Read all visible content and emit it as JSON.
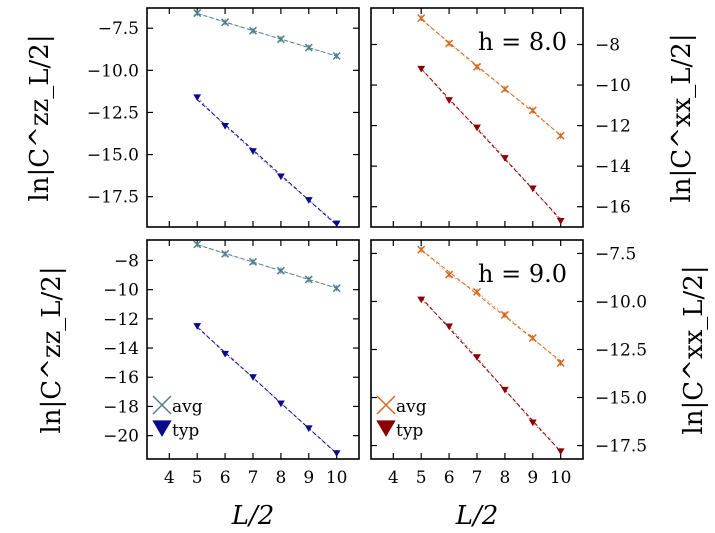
{
  "figure": {
    "xlabel_left": "L/2",
    "xlabel_right": "L/2",
    "ylabel_left_top": "ln|C^zz_L/2|",
    "ylabel_left_bottom": "ln|C^zz_L/2|",
    "ylabel_right_top": "ln|C^xx_L/2|",
    "ylabel_right_bottom": "ln|C^xx_L/2|",
    "annotation_top": "h = 8.0",
    "annotation_bottom": "h = 9.0",
    "legend_left": {
      "avg": "avg",
      "typ": "typ"
    },
    "legend_right": {
      "avg": "avg",
      "typ": "typ"
    }
  },
  "colors": {
    "zz_avg": "#4e7f8a",
    "zz_typ": "#0a0a8c",
    "xx_avg": "#d2691e",
    "xx_typ": "#8b0000",
    "fit_zz": "#6fa8a0",
    "fit_xx": "#d2691e"
  },
  "chart_data": [
    {
      "id": "top-left",
      "type": "line",
      "h": 8.0,
      "ylabel": "ln|C^zz_L/2|",
      "xlabel": "",
      "xlim": [
        3.2,
        10.8
      ],
      "ylim": [
        -19.3,
        -6.3
      ],
      "xticks": [
        4,
        5,
        6,
        7,
        8,
        9,
        10
      ],
      "show_xticklabels": false,
      "yticks": [
        -17.5,
        -15.0,
        -12.5,
        -10.0,
        -7.5
      ],
      "ytick_labels": [
        "−17.5",
        "−15.0",
        "−12.5",
        "−10.0",
        "−7.5"
      ],
      "yaxis_side": "left",
      "series": [
        {
          "name": "avg",
          "marker": "x",
          "color": "#4e7f8a",
          "x": [
            5,
            6,
            7,
            8,
            9,
            10
          ],
          "y": [
            -6.6,
            -7.15,
            -7.65,
            -8.15,
            -8.65,
            -9.15
          ]
        },
        {
          "name": "typ",
          "marker": "triangle-down",
          "color": "#0a0a8c",
          "x": [
            5,
            6,
            7,
            8,
            9,
            10
          ],
          "y": [
            -11.6,
            -13.3,
            -14.8,
            -16.3,
            -17.7,
            -19.1
          ]
        }
      ]
    },
    {
      "id": "top-right",
      "type": "line",
      "h": 8.0,
      "ylabel": "ln|C^xx_L/2|",
      "xlabel": "",
      "xlim": [
        3.2,
        10.8
      ],
      "ylim": [
        -17.0,
        -6.2
      ],
      "xticks": [
        4,
        5,
        6,
        7,
        8,
        9,
        10
      ],
      "show_xticklabels": false,
      "yticks": [
        -16,
        -14,
        -12,
        -10,
        -8
      ],
      "ytick_labels": [
        "−16",
        "−14",
        "−12",
        "−10",
        "−8"
      ],
      "yaxis_side": "right",
      "series": [
        {
          "name": "avg",
          "marker": "x",
          "color": "#d2691e",
          "x": [
            5,
            6,
            7,
            8,
            9,
            10
          ],
          "y": [
            -6.7,
            -7.95,
            -9.1,
            -10.2,
            -11.25,
            -12.5
          ]
        },
        {
          "name": "typ",
          "marker": "triangle-down",
          "color": "#8b0000",
          "x": [
            5,
            6,
            7,
            8,
            9,
            10
          ],
          "y": [
            -9.2,
            -10.75,
            -12.1,
            -13.6,
            -15.1,
            -16.7
          ]
        }
      ]
    },
    {
      "id": "bottom-left",
      "type": "line",
      "h": 9.0,
      "ylabel": "ln|C^zz_L/2|",
      "xlabel": "L/2",
      "xlim": [
        3.2,
        10.8
      ],
      "ylim": [
        -21.6,
        -6.6
      ],
      "xticks": [
        4,
        5,
        6,
        7,
        8,
        9,
        10
      ],
      "show_xticklabels": true,
      "xtick_labels": [
        "4",
        "5",
        "6",
        "7",
        "8",
        "9",
        "10"
      ],
      "yticks": [
        -20,
        -18,
        -16,
        -14,
        -12,
        -10,
        -8
      ],
      "ytick_labels": [
        "−20",
        "−18",
        "−16",
        "−14",
        "−12",
        "−10",
        "−8"
      ],
      "yaxis_side": "left",
      "series": [
        {
          "name": "avg",
          "marker": "x",
          "color": "#4e7f8a",
          "x": [
            5,
            6,
            7,
            8,
            9,
            10
          ],
          "y": [
            -6.9,
            -7.55,
            -8.1,
            -8.7,
            -9.3,
            -9.9
          ]
        },
        {
          "name": "typ",
          "marker": "triangle-down",
          "color": "#0a0a8c",
          "x": [
            5,
            6,
            7,
            8,
            9,
            10
          ],
          "y": [
            -12.5,
            -14.4,
            -16.0,
            -17.8,
            -19.5,
            -21.2
          ]
        }
      ]
    },
    {
      "id": "bottom-right",
      "type": "line",
      "h": 9.0,
      "ylabel": "ln|C^xx_L/2|",
      "xlabel": "L/2",
      "xlim": [
        3.2,
        10.8
      ],
      "ylim": [
        -18.2,
        -6.8
      ],
      "xticks": [
        4,
        5,
        6,
        7,
        8,
        9,
        10
      ],
      "show_xticklabels": true,
      "xtick_labels": [
        "4",
        "5",
        "6",
        "7",
        "8",
        "9",
        "10"
      ],
      "yticks": [
        -17.5,
        -15.0,
        -12.5,
        -10.0,
        -7.5
      ],
      "ytick_labels": [
        "−17.5",
        "−15.0",
        "−12.5",
        "−10.0",
        "−7.5"
      ],
      "yaxis_side": "right",
      "series": [
        {
          "name": "avg",
          "marker": "x",
          "color": "#d2691e",
          "x": [
            5,
            6,
            7,
            8,
            9,
            10
          ],
          "y": [
            -7.3,
            -8.6,
            -9.5,
            -10.7,
            -11.9,
            -13.2
          ]
        },
        {
          "name": "typ",
          "marker": "triangle-down",
          "color": "#8b0000",
          "x": [
            5,
            6,
            7,
            8,
            9,
            10
          ],
          "y": [
            -9.9,
            -11.3,
            -12.9,
            -14.6,
            -16.3,
            -17.8
          ]
        }
      ]
    }
  ]
}
